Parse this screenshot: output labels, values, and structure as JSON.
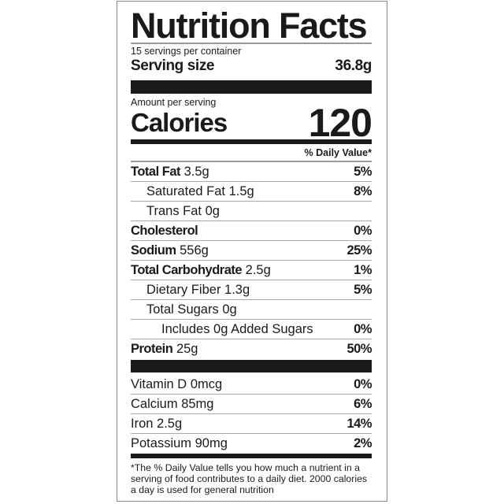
{
  "title": "Nutrition Facts",
  "servings_per_container": "15 servings per container",
  "serving_size": {
    "label": "Serving size",
    "value": "36.8g"
  },
  "amount_per_serving": "Amount per serving",
  "calories": {
    "label": "Calories",
    "value": "120"
  },
  "daily_value_header": "% Daily Value*",
  "nutrients": [
    {
      "name": "Total Fat",
      "amount": "3.5g",
      "dv": "5%"
    },
    {
      "name": "Saturated Fat",
      "amount": "1.5g",
      "dv": "8%"
    },
    {
      "name": "Trans Fat",
      "amount": "0g",
      "dv": ""
    },
    {
      "name": "Cholesterol",
      "amount": "",
      "dv": "0%"
    },
    {
      "name": "Sodium",
      "amount": "556g",
      "dv": "25%"
    },
    {
      "name": "Total Carbohydrate",
      "amount": "2.5g",
      "dv": "1%"
    },
    {
      "name": "Dietary Fiber",
      "amount": "1.3g",
      "dv": "5%"
    },
    {
      "name": "Total Sugars",
      "amount": "0g",
      "dv": ""
    },
    {
      "name": "Includes 0g Added Sugars",
      "amount": "",
      "dv": "0%"
    },
    {
      "name": "Protein",
      "amount": "25g",
      "dv": "50%"
    }
  ],
  "vitamins": [
    {
      "name": "Vitamin D",
      "amount": "0mcg",
      "dv": "0%"
    },
    {
      "name": "Calcium",
      "amount": "85mg",
      "dv": "6%"
    },
    {
      "name": "Iron",
      "amount": "2.5g",
      "dv": "14%"
    },
    {
      "name": "Potassium",
      "amount": "90mg",
      "dv": "2%"
    }
  ],
  "footnote": "*The % Daily Value tells you how much a nutrient in a serving of food contributes to a daily diet. 2000 calories a day is used for general nutrition"
}
